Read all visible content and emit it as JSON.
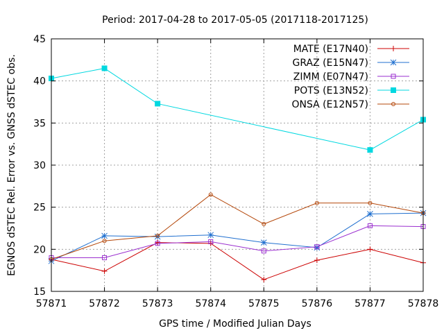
{
  "chart_data": {
    "type": "line",
    "title": "Period: 2017-04-28 to 2017-05-05 (2017118-2017125)",
    "xlabel": "GPS time / Modified Julian Days",
    "ylabel": "EGNOS dSTEC Rel. Error vs. GNSS dSTEC obs.",
    "xlim": [
      57871,
      57878
    ],
    "ylim": [
      15,
      45
    ],
    "xticks": [
      57871,
      57872,
      57873,
      57874,
      57875,
      57876,
      57877,
      57878
    ],
    "yticks": [
      15,
      20,
      25,
      30,
      35,
      40,
      45
    ],
    "grid": true,
    "legend_position": "top-right",
    "series": [
      {
        "name": "MATE (E17N40)",
        "color": "#cc0000",
        "marker": "plus",
        "x": [
          57871,
          57872,
          57873,
          57874,
          57875,
          57876,
          57877,
          57878
        ],
        "values": [
          18.8,
          17.4,
          20.8,
          20.7,
          16.4,
          18.7,
          20.0,
          18.4
        ]
      },
      {
        "name": "GRAZ (E15N47)",
        "color": "#1f6fcf",
        "marker": "star",
        "x": [
          57871,
          57872,
          57873,
          57874,
          57875,
          57876,
          57877,
          57878
        ],
        "values": [
          18.6,
          21.6,
          21.5,
          21.7,
          20.8,
          20.2,
          24.2,
          24.3
        ]
      },
      {
        "name": "ZIMM (E07N47)",
        "color": "#9a2ecf",
        "marker": "square-open",
        "x": [
          57871,
          57872,
          57873,
          57874,
          57875,
          57876,
          57877,
          57878
        ],
        "values": [
          19.0,
          19.0,
          20.7,
          20.9,
          19.8,
          20.3,
          22.8,
          22.7
        ]
      },
      {
        "name": "POTS (E13N52)",
        "color": "#00d8e0",
        "marker": "square-filled",
        "x": [
          57871,
          57872,
          57873,
          57877,
          57878
        ],
        "values": [
          40.3,
          41.5,
          37.3,
          31.8,
          35.4
        ]
      },
      {
        "name": "ONSA (E12N57)",
        "color": "#b4470a",
        "marker": "circle-open",
        "x": [
          57871,
          57872,
          57873,
          57874,
          57875,
          57876,
          57877,
          57878
        ],
        "values": [
          18.8,
          21.0,
          21.6,
          26.5,
          23.0,
          25.5,
          25.5,
          24.3
        ]
      }
    ]
  }
}
